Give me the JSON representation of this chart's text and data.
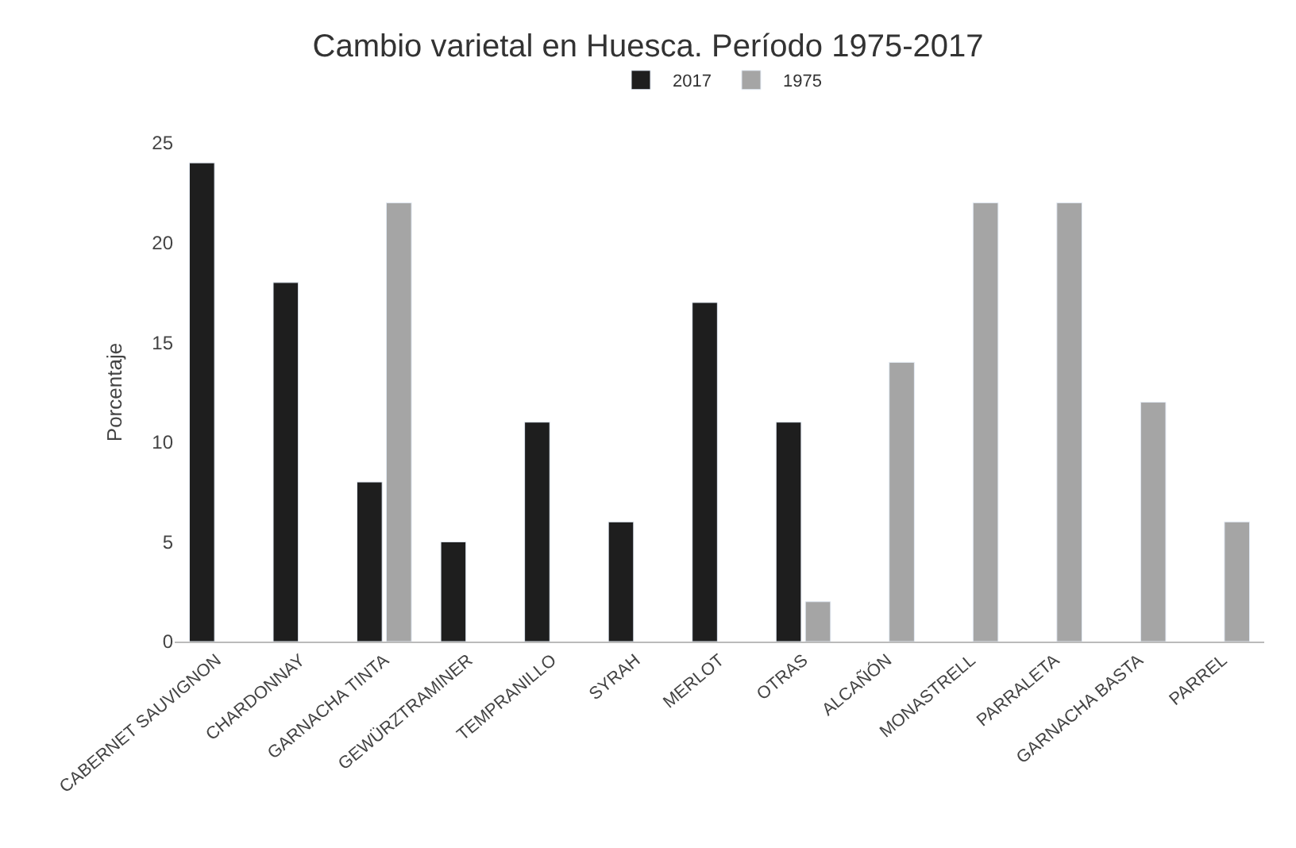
{
  "chart_data": {
    "type": "bar",
    "title": "Cambio varietal en Huesca. Período 1975-2017",
    "ylabel": "Porcentaje",
    "categories": [
      "CABERNET SAUVIGNON",
      "CHARDONNAY",
      "GARNACHA TINTA",
      "GEWÜRZTRAMINER",
      "TEMPRANILLO",
      "SYRAH",
      "MERLOT",
      "OTRAS",
      "ALCAÑÓN",
      "MONASTRELL",
      "PARRALETA",
      "GARNACHA BASTA",
      "PARREL"
    ],
    "series": [
      {
        "name": "2017",
        "color": "#1e1e1e",
        "values": [
          24,
          18,
          8,
          5,
          11,
          6,
          17,
          11,
          null,
          null,
          null,
          null,
          null
        ]
      },
      {
        "name": "1975",
        "color": "#a5a5a5",
        "values": [
          null,
          null,
          22,
          null,
          null,
          null,
          null,
          2,
          14,
          22,
          22,
          12,
          6
        ]
      }
    ],
    "ylim": [
      0,
      25
    ],
    "yticks": [
      0,
      5,
      10,
      15,
      20,
      25
    ],
    "grid": false,
    "legend": "top"
  }
}
